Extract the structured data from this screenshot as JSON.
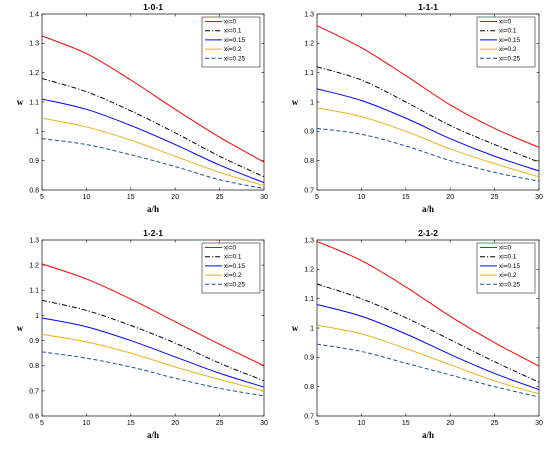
{
  "colors": {
    "xi0": "#ff0000",
    "xi01": "#000000",
    "xi015": "#0000ff",
    "xi02": "#edb120",
    "xi025": "#1f4e9e"
  },
  "chart_data": [
    {
      "type": "line",
      "title": "1-0-1",
      "xlabel": "a/h",
      "ylabel": "w",
      "xlim": [
        5,
        30
      ],
      "ylim": [
        0.8,
        1.4
      ],
      "xticks": [
        5,
        10,
        15,
        20,
        25,
        30
      ],
      "yticks": [
        0.8,
        0.9,
        1.0,
        1.1,
        1.2,
        1.3,
        1.4
      ],
      "ytick_labels": [
        "0.8",
        "0.9",
        "1",
        "1.1",
        "1.2",
        "1.3",
        "1.4"
      ],
      "legend": "top-right",
      "grid": false,
      "x": [
        5,
        10,
        15,
        20,
        25,
        30
      ],
      "series": [
        {
          "name": "xi=0",
          "style": "solid",
          "color": "#ff0000",
          "values": [
            1.325,
            1.265,
            1.175,
            1.075,
            0.98,
            0.895
          ]
        },
        {
          "name": "xi=0.1",
          "style": "dashdot",
          "color": "#000000",
          "values": [
            1.18,
            1.135,
            1.07,
            0.995,
            0.915,
            0.845
          ]
        },
        {
          "name": "xi=0.15",
          "style": "solid",
          "color": "#0000ff",
          "values": [
            1.11,
            1.075,
            1.02,
            0.955,
            0.885,
            0.825
          ]
        },
        {
          "name": "xi=0.2",
          "style": "solid",
          "color": "#edb120",
          "values": [
            1.045,
            1.015,
            0.97,
            0.915,
            0.86,
            0.815
          ]
        },
        {
          "name": "xi=0.25",
          "style": "dashed",
          "color": "#1f4e9e",
          "values": [
            0.975,
            0.955,
            0.92,
            0.88,
            0.835,
            0.805
          ]
        }
      ]
    },
    {
      "type": "line",
      "title": "1-1-1",
      "xlabel": "a/h",
      "ylabel": "w",
      "xlim": [
        5,
        30
      ],
      "ylim": [
        0.7,
        1.3
      ],
      "xticks": [
        5,
        10,
        15,
        20,
        25,
        30
      ],
      "yticks": [
        0.7,
        0.8,
        0.9,
        1.0,
        1.1,
        1.2,
        1.3
      ],
      "ytick_labels": [
        "0.7",
        "0.8",
        "0.9",
        "1",
        "1.1",
        "1.2",
        "1.3"
      ],
      "legend": "top-right",
      "grid": false,
      "x": [
        5,
        10,
        15,
        20,
        25,
        30
      ],
      "series": [
        {
          "name": "xi=0",
          "style": "solid",
          "color": "#ff0000",
          "values": [
            1.26,
            1.185,
            1.09,
            0.99,
            0.91,
            0.845
          ]
        },
        {
          "name": "xi=0.1",
          "style": "dashdot",
          "color": "#000000",
          "values": [
            1.12,
            1.075,
            1.0,
            0.92,
            0.855,
            0.795
          ]
        },
        {
          "name": "xi=0.15",
          "style": "solid",
          "color": "#0000ff",
          "values": [
            1.045,
            1.005,
            0.945,
            0.875,
            0.815,
            0.765
          ]
        },
        {
          "name": "xi=0.2",
          "style": "solid",
          "color": "#edb120",
          "values": [
            0.98,
            0.95,
            0.9,
            0.84,
            0.79,
            0.745
          ]
        },
        {
          "name": "xi=0.25",
          "style": "dashed",
          "color": "#1f4e9e",
          "values": [
            0.91,
            0.89,
            0.85,
            0.8,
            0.76,
            0.73
          ]
        }
      ]
    },
    {
      "type": "line",
      "title": "1-2-1",
      "xlabel": "a/h",
      "ylabel": "w",
      "xlim": [
        5,
        30
      ],
      "ylim": [
        0.6,
        1.3
      ],
      "xticks": [
        5,
        10,
        15,
        20,
        25,
        30
      ],
      "yticks": [
        0.6,
        0.7,
        0.8,
        0.9,
        1.0,
        1.1,
        1.2,
        1.3
      ],
      "ytick_labels": [
        "0.6",
        "0.7",
        "0.8",
        "0.9",
        "1",
        "1.1",
        "1.2",
        "1.3"
      ],
      "legend": "top-right",
      "grid": false,
      "x": [
        5,
        10,
        15,
        20,
        25,
        30
      ],
      "series": [
        {
          "name": "xi=0",
          "style": "solid",
          "color": "#ff0000",
          "values": [
            1.205,
            1.145,
            1.065,
            0.975,
            0.885,
            0.8
          ]
        },
        {
          "name": "xi=0.1",
          "style": "dashdot",
          "color": "#000000",
          "values": [
            1.06,
            1.02,
            0.96,
            0.89,
            0.81,
            0.74
          ]
        },
        {
          "name": "xi=0.15",
          "style": "solid",
          "color": "#0000ff",
          "values": [
            0.99,
            0.955,
            0.9,
            0.835,
            0.77,
            0.715
          ]
        },
        {
          "name": "xi=0.2",
          "style": "solid",
          "color": "#edb120",
          "values": [
            0.925,
            0.895,
            0.85,
            0.795,
            0.745,
            0.7
          ]
        },
        {
          "name": "xi=0.25",
          "style": "dashed",
          "color": "#1f4e9e",
          "values": [
            0.855,
            0.83,
            0.795,
            0.75,
            0.71,
            0.68
          ]
        }
      ]
    },
    {
      "type": "line",
      "title": "2-1-2",
      "xlabel": "a/h",
      "ylabel": "w",
      "xlim": [
        5,
        30
      ],
      "ylim": [
        0.7,
        1.3
      ],
      "xticks": [
        5,
        10,
        15,
        20,
        25,
        30
      ],
      "yticks": [
        0.7,
        0.8,
        0.9,
        1.0,
        1.1,
        1.2,
        1.3
      ],
      "ytick_labels": [
        "0.7",
        "0.8",
        "0.9",
        "1",
        "1.1",
        "1.2",
        "1.3"
      ],
      "legend": "top-right",
      "grid": false,
      "x": [
        5,
        10,
        15,
        20,
        25,
        30
      ],
      "series": [
        {
          "name": "xi=0",
          "style": "solid",
          "color": "#ff0000",
          "values": [
            1.295,
            1.23,
            1.14,
            1.04,
            0.95,
            0.87
          ]
        },
        {
          "name": "xi=0.1",
          "style": "dashdot",
          "color": "#000000",
          "values": [
            1.15,
            1.1,
            1.035,
            0.96,
            0.885,
            0.815
          ]
        },
        {
          "name": "xi=0.15",
          "style": "solid",
          "color": "#0000ff",
          "values": [
            1.08,
            1.04,
            0.98,
            0.91,
            0.845,
            0.79
          ]
        },
        {
          "name": "xi=0.2",
          "style": "solid",
          "color": "#edb120",
          "values": [
            1.01,
            0.98,
            0.93,
            0.875,
            0.82,
            0.775
          ]
        },
        {
          "name": "xi=0.25",
          "style": "dashed",
          "color": "#1f4e9e",
          "values": [
            0.945,
            0.92,
            0.88,
            0.84,
            0.8,
            0.765
          ]
        }
      ]
    }
  ]
}
